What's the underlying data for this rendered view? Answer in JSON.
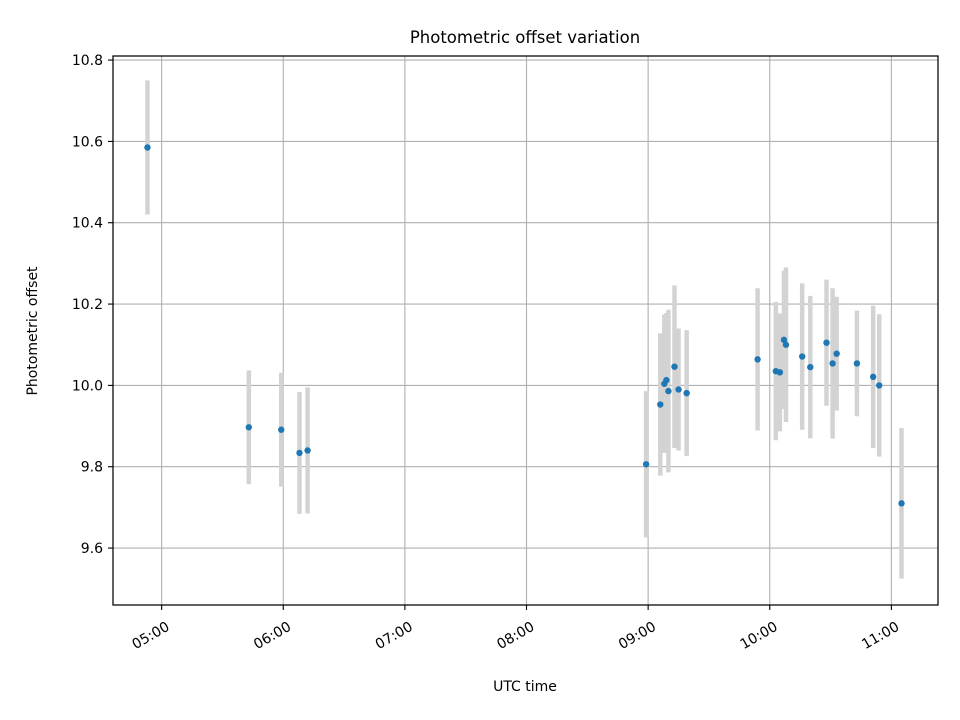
{
  "chart_data": {
    "type": "scatter",
    "title": "Photometric offset variation",
    "xlabel": "UTC time",
    "ylabel": "Photometric offset",
    "xlim": [
      "04:36",
      "11:23"
    ],
    "ylim": [
      9.46,
      10.81
    ],
    "xticks": [
      "05:00",
      "06:00",
      "07:00",
      "08:00",
      "09:00",
      "10:00",
      "11:00"
    ],
    "yticks": [
      "9.6",
      "9.8",
      "10.0",
      "10.2",
      "10.4",
      "10.6",
      "10.8"
    ],
    "grid": true,
    "x_unit": "UTC time (HH:MM)",
    "points": [
      {
        "x": "04:53",
        "y": 10.585,
        "err": 0.165
      },
      {
        "x": "05:43",
        "y": 9.897,
        "err": 0.14
      },
      {
        "x": "05:59",
        "y": 9.891,
        "err": 0.14
      },
      {
        "x": "06:08",
        "y": 9.834,
        "err": 0.15
      },
      {
        "x": "06:12",
        "y": 9.84,
        "err": 0.155
      },
      {
        "x": "08:59",
        "y": 9.806,
        "err": 0.18
      },
      {
        "x": "09:06",
        "y": 9.953,
        "err": 0.175
      },
      {
        "x": "09:08",
        "y": 10.004,
        "err": 0.17
      },
      {
        "x": "09:09",
        "y": 10.013,
        "err": 0.165
      },
      {
        "x": "09:10",
        "y": 9.986,
        "err": 0.2
      },
      {
        "x": "09:13",
        "y": 10.046,
        "err": 0.2
      },
      {
        "x": "09:15",
        "y": 9.99,
        "err": 0.15
      },
      {
        "x": "09:19",
        "y": 9.981,
        "err": 0.155
      },
      {
        "x": "09:54",
        "y": 10.064,
        "err": 0.175
      },
      {
        "x": "10:03",
        "y": 10.035,
        "err": 0.17
      },
      {
        "x": "10:05",
        "y": 10.032,
        "err": 0.145
      },
      {
        "x": "10:07",
        "y": 10.112,
        "err": 0.17
      },
      {
        "x": "10:08",
        "y": 10.1,
        "err": 0.19
      },
      {
        "x": "10:16",
        "y": 10.071,
        "err": 0.18
      },
      {
        "x": "10:20",
        "y": 10.045,
        "err": 0.175
      },
      {
        "x": "10:28",
        "y": 10.105,
        "err": 0.155
      },
      {
        "x": "10:31",
        "y": 10.054,
        "err": 0.185
      },
      {
        "x": "10:33",
        "y": 10.078,
        "err": 0.14
      },
      {
        "x": "10:43",
        "y": 10.054,
        "err": 0.13
      },
      {
        "x": "10:51",
        "y": 10.021,
        "err": 0.175
      },
      {
        "x": "10:54",
        "y": 10.0,
        "err": 0.175
      },
      {
        "x": "11:05",
        "y": 9.71,
        "err": 0.185
      }
    ]
  },
  "colors": {
    "marker": "#1f77b4",
    "errorbar": "#d3d3d3",
    "grid": "#b0b0b0",
    "axes": "#000000"
  }
}
